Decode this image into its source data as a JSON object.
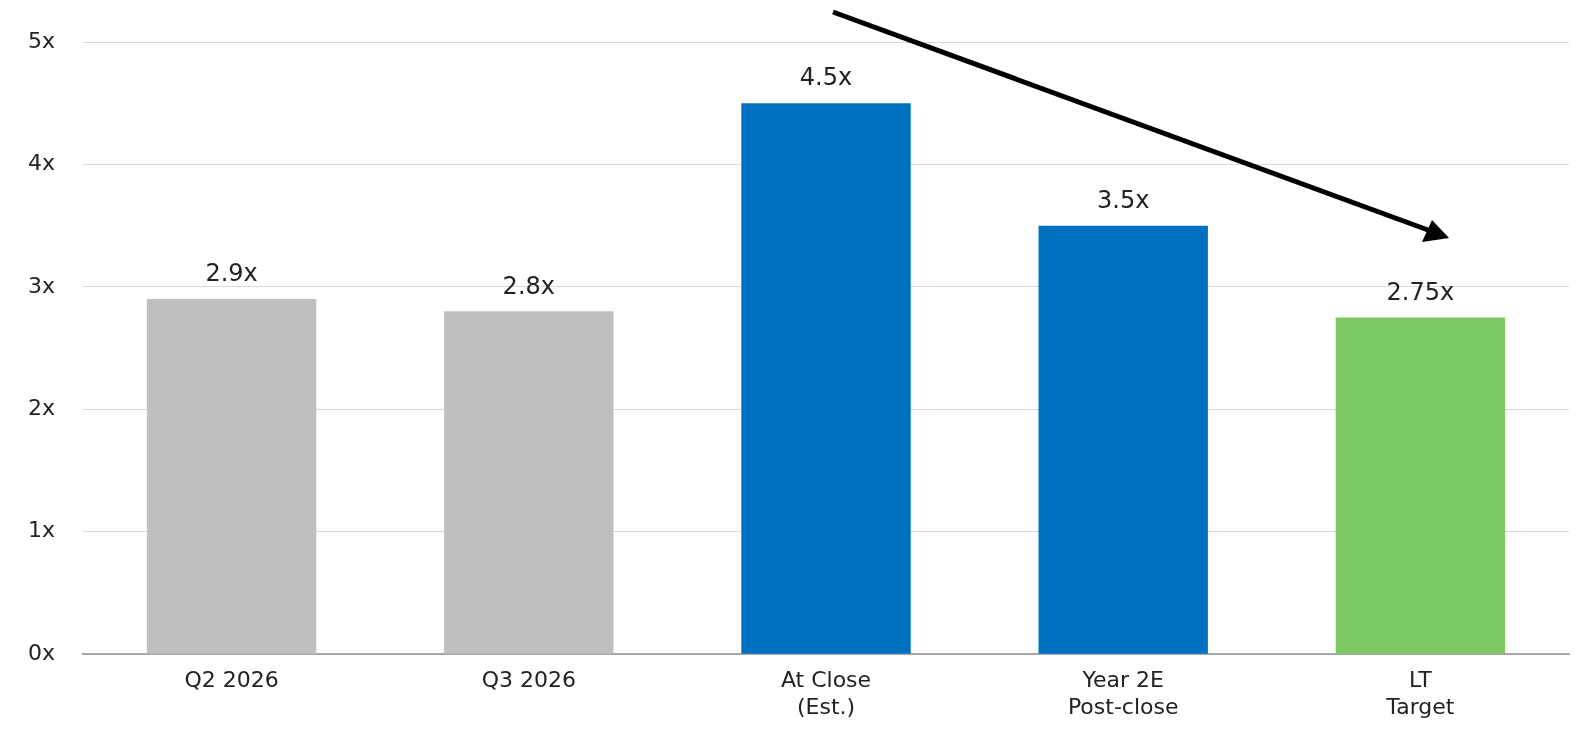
{
  "chart_data": {
    "type": "bar",
    "categories": [
      "Q2 2026",
      "Q3 2026",
      "At Close\n(Est.)",
      "Year 2E\nPost-close",
      "LT\nTarget"
    ],
    "values": [
      2.9,
      2.8,
      4.5,
      3.5,
      2.75
    ],
    "colors": [
      "#bfbfbf",
      "#bfbfbf",
      "#0070c0",
      "#0070c0",
      "#7dca63"
    ],
    "value_labels": [
      "2.9x",
      "2.8x",
      "4.5x",
      "3.5x",
      "2.75x"
    ],
    "ylim": [
      0,
      5
    ],
    "yticks": [
      {
        "value": 0,
        "label": "0x"
      },
      {
        "value": 1,
        "label": "1x"
      },
      {
        "value": 2,
        "label": "2x"
      },
      {
        "value": 3,
        "label": "3x"
      },
      {
        "value": 4,
        "label": "4x"
      },
      {
        "value": 5,
        "label": "5x"
      }
    ],
    "grid": "y",
    "legend": false
  }
}
